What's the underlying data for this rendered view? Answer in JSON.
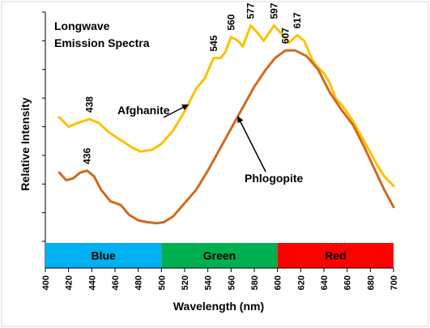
{
  "chart_data": {
    "type": "line",
    "title": "Longwave\nEmission Spectra",
    "title_lines": [
      "Longwave",
      "Emission Spectra"
    ],
    "xlabel": "Wavelength (nm)",
    "ylabel": "Relative Intensity",
    "xlim": [
      400,
      700
    ],
    "ylim": [
      0,
      1.2
    ],
    "x_ticks": [
      400,
      420,
      440,
      460,
      480,
      500,
      520,
      540,
      560,
      580,
      600,
      620,
      640,
      660,
      680,
      700
    ],
    "grid": false,
    "y_tick_labels_shown": false,
    "series": [
      {
        "name": "Afghanite",
        "color": "#FFC000",
        "points": [
          [
            412,
            0.65
          ],
          [
            420,
            0.6
          ],
          [
            428,
            0.62
          ],
          [
            438,
            0.64
          ],
          [
            446,
            0.62
          ],
          [
            455,
            0.57
          ],
          [
            465,
            0.53
          ],
          [
            475,
            0.49
          ],
          [
            482,
            0.47
          ],
          [
            492,
            0.48
          ],
          [
            500,
            0.51
          ],
          [
            510,
            0.58
          ],
          [
            520,
            0.68
          ],
          [
            530,
            0.8
          ],
          [
            537,
            0.85
          ],
          [
            545,
            0.96
          ],
          [
            551,
            0.96
          ],
          [
            555,
            0.99
          ],
          [
            560,
            1.07
          ],
          [
            566,
            1.05
          ],
          [
            570,
            1.02
          ],
          [
            577,
            1.13
          ],
          [
            583,
            1.09
          ],
          [
            588,
            1.05
          ],
          [
            597,
            1.13
          ],
          [
            603,
            1.09
          ],
          [
            610,
            1.04
          ],
          [
            617,
            1.08
          ],
          [
            623,
            1.05
          ],
          [
            630,
            0.95
          ],
          [
            635,
            0.91
          ],
          [
            640,
            0.88
          ],
          [
            645,
            0.83
          ],
          [
            650,
            0.75
          ],
          [
            656,
            0.71
          ],
          [
            665,
            0.63
          ],
          [
            675,
            0.52
          ],
          [
            685,
            0.41
          ],
          [
            692,
            0.34
          ],
          [
            700,
            0.29
          ]
        ]
      },
      {
        "name": "Phlogopite",
        "color": "#D2691E",
        "points": [
          [
            412,
            0.36
          ],
          [
            418,
            0.32
          ],
          [
            424,
            0.33
          ],
          [
            430,
            0.36
          ],
          [
            436,
            0.37
          ],
          [
            442,
            0.34
          ],
          [
            448,
            0.27
          ],
          [
            456,
            0.21
          ],
          [
            465,
            0.19
          ],
          [
            472,
            0.14
          ],
          [
            480,
            0.11
          ],
          [
            488,
            0.1
          ],
          [
            496,
            0.095
          ],
          [
            502,
            0.1
          ],
          [
            510,
            0.13
          ],
          [
            520,
            0.2
          ],
          [
            530,
            0.27
          ],
          [
            540,
            0.37
          ],
          [
            550,
            0.48
          ],
          [
            560,
            0.59
          ],
          [
            570,
            0.7
          ],
          [
            580,
            0.81
          ],
          [
            590,
            0.9
          ],
          [
            598,
            0.96
          ],
          [
            607,
            1.0
          ],
          [
            615,
            1.0
          ],
          [
            625,
            0.97
          ],
          [
            635,
            0.9
          ],
          [
            645,
            0.78
          ],
          [
            655,
            0.69
          ],
          [
            665,
            0.61
          ],
          [
            675,
            0.49
          ],
          [
            685,
            0.36
          ],
          [
            692,
            0.27
          ],
          [
            700,
            0.18
          ]
        ]
      }
    ],
    "peak_annotations": [
      {
        "text": "438",
        "x": 438,
        "y": 0.64,
        "series": "Afghanite",
        "rotated": true
      },
      {
        "text": "545",
        "x": 545,
        "y": 0.96,
        "series": "Afghanite",
        "rotated": true
      },
      {
        "text": "560",
        "x": 560,
        "y": 1.07,
        "series": "Afghanite",
        "rotated": true
      },
      {
        "text": "577",
        "x": 577,
        "y": 1.13,
        "series": "Afghanite",
        "rotated": true
      },
      {
        "text": "597",
        "x": 597,
        "y": 1.13,
        "series": "Afghanite",
        "rotated": true
      },
      {
        "text": "617",
        "x": 617,
        "y": 1.08,
        "series": "Afghanite",
        "rotated": true
      },
      {
        "text": "436",
        "x": 436,
        "y": 0.37,
        "series": "Phlogopite",
        "rotated": true
      },
      {
        "text": "607",
        "x": 607,
        "y": 1.0,
        "series": "Phlogopite",
        "rotated": true
      }
    ],
    "series_callouts": [
      {
        "text": "Afghanite",
        "anchor_series": "Afghanite",
        "anchor_x": 525
      },
      {
        "text": "Phlogopite",
        "anchor_series": "Phlogopite",
        "anchor_x": 568
      }
    ],
    "color_bands": [
      {
        "label": "Blue",
        "from": 400,
        "to": 500,
        "color": "#00B0F0"
      },
      {
        "label": "Green",
        "from": 500,
        "to": 600,
        "color": "#00B050"
      },
      {
        "label": "Red",
        "from": 600,
        "to": 700,
        "color": "#FF0000"
      }
    ]
  }
}
